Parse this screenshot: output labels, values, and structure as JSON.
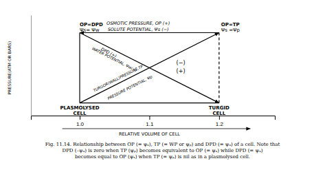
{
  "chart_data": {
    "type": "line",
    "xlabel": "RELATIVE VOLUME OF CELL",
    "ylabel": "PRESSURE(ATM OR BARS)",
    "xlim": [
      0.93,
      1.28
    ],
    "ylim": [
      -0.18,
      1.25
    ],
    "xticks": [
      {
        "value": 1.0,
        "label": "1.0"
      },
      {
        "value": 1.1,
        "label": "1.1"
      },
      {
        "value": 1.2,
        "label": "1.2"
      }
    ],
    "tick_labels": "x",
    "color": "#000000",
    "series": [
      {
        "x": [
          1.2,
          1.0
        ],
        "values": [
          1.0,
          1.0
        ],
        "marker": "arrow"
      },
      {
        "x": [
          1.0,
          1.2
        ],
        "values": [
          1.0,
          0.0
        ],
        "marker": "arrow"
      },
      {
        "x": [
          1.0,
          1.2
        ],
        "values": [
          0.0,
          1.0
        ],
        "marker": "arrow"
      },
      {
        "x": [
          1.0,
          1.2
        ],
        "values": [
          0.0,
          0.0
        ]
      },
      {
        "x": [
          1.0,
          1.0
        ],
        "values": [
          0.0,
          1.0
        ]
      },
      {
        "x": [
          1.2,
          1.2
        ],
        "values": [
          0.0,
          1.0
        ],
        "line_style": "dashed"
      }
    ],
    "annotations": [
      "OP=DPD",
      "Ψs= Ψw",
      "OP=TP",
      "Ψs =Ψp",
      "PLASMOLYSED",
      "CELL",
      "TURGID",
      "CELL",
      "OSMOTIC PRESSURE, OP (+)",
      "SOLUTE POTENTIAL, Ψs (−)",
      "DPD (+)",
      "WATER POTENTIAL, Ψw(−)",
      "TURGOR(WALL)PRESSURE,TP",
      "PRESSURE POTENTIAL, Ψp",
      "(−)",
      "(+)"
    ],
    "caption": [
      "Fig. 11.14. Relationship between OP (= ψₛ), TP (= WP or ψₚ) and DPD (= ψᵤ) of a cell. Note that",
      "DPD (–ψᵤ) is zero when TP (ψₚ) becomes equivalent to OP (= ψₛ) while DPD (= ψᵤ)",
      "becomes equal to OP (ψₛ) when TP (= ψₚ) is nil as in a plasmolysed cell."
    ]
  }
}
